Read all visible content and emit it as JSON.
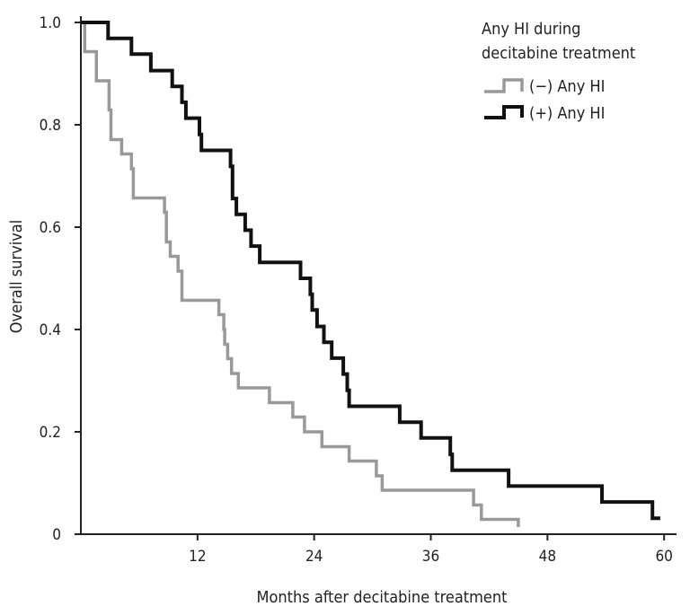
{
  "chart_data": {
    "type": "line",
    "subtype": "kaplan-meier step",
    "xlabel": "Months after decitabine treatment",
    "ylabel": "Overall survival",
    "xlim": [
      0,
      61
    ],
    "ylim": [
      0,
      1.0
    ],
    "x_ticks": [
      12,
      24,
      36,
      48,
      60
    ],
    "x_tick_labels": [
      "12",
      "24",
      "36",
      "48",
      "60"
    ],
    "y_ticks": [
      0,
      0.2,
      0.4,
      0.6,
      0.8,
      1.0
    ],
    "y_tick_labels": [
      "0",
      "0.2",
      "0.4",
      "0.6",
      "0.8",
      "1.0"
    ],
    "grid": false,
    "legend": {
      "position": "top-right",
      "title_lines": [
        "Any HI during",
        "decitabine treatment"
      ]
    },
    "series": [
      {
        "name": "(−) Any HI",
        "color": "#999999",
        "points": [
          [
            0,
            1.0
          ],
          [
            0.4,
            0.943
          ],
          [
            1.6,
            0.886
          ],
          [
            2.9,
            0.829
          ],
          [
            3.1,
            0.771
          ],
          [
            4.2,
            0.743
          ],
          [
            5.2,
            0.714
          ],
          [
            5.4,
            0.657
          ],
          [
            8.6,
            0.629
          ],
          [
            8.8,
            0.571
          ],
          [
            9.2,
            0.543
          ],
          [
            10.0,
            0.514
          ],
          [
            10.4,
            0.457
          ],
          [
            14.2,
            0.429
          ],
          [
            14.7,
            0.4
          ],
          [
            14.8,
            0.371
          ],
          [
            15.1,
            0.343
          ],
          [
            15.5,
            0.314
          ],
          [
            16.2,
            0.286
          ],
          [
            19.4,
            0.257
          ],
          [
            21.8,
            0.229
          ],
          [
            23.0,
            0.2
          ],
          [
            24.8,
            0.171
          ],
          [
            27.6,
            0.143
          ],
          [
            30.4,
            0.114
          ],
          [
            31.0,
            0.086
          ],
          [
            40.4,
            0.057
          ],
          [
            41.2,
            0.029
          ],
          [
            45.0,
            0.029
          ],
          [
            45.0,
            0.014
          ]
        ]
      },
      {
        "name": "(+) Any HI",
        "color": "#111111",
        "points": [
          [
            0,
            1.0
          ],
          [
            2.8,
            0.969
          ],
          [
            5.2,
            0.938
          ],
          [
            7.2,
            0.906
          ],
          [
            9.4,
            0.875
          ],
          [
            10.4,
            0.844
          ],
          [
            10.8,
            0.813
          ],
          [
            12.2,
            0.781
          ],
          [
            12.4,
            0.75
          ],
          [
            15.4,
            0.719
          ],
          [
            15.6,
            0.656
          ],
          [
            16.0,
            0.625
          ],
          [
            16.9,
            0.594
          ],
          [
            17.5,
            0.563
          ],
          [
            18.4,
            0.531
          ],
          [
            22.6,
            0.5
          ],
          [
            23.6,
            0.469
          ],
          [
            23.8,
            0.438
          ],
          [
            24.3,
            0.406
          ],
          [
            25.0,
            0.375
          ],
          [
            25.8,
            0.344
          ],
          [
            27.0,
            0.313
          ],
          [
            27.4,
            0.281
          ],
          [
            27.6,
            0.25
          ],
          [
            32.8,
            0.219
          ],
          [
            35.0,
            0.188
          ],
          [
            38.0,
            0.156
          ],
          [
            38.2,
            0.125
          ],
          [
            44.0,
            0.094
          ],
          [
            53.6,
            0.063
          ],
          [
            58.8,
            0.031
          ],
          [
            59.6,
            0.031
          ]
        ]
      }
    ]
  }
}
